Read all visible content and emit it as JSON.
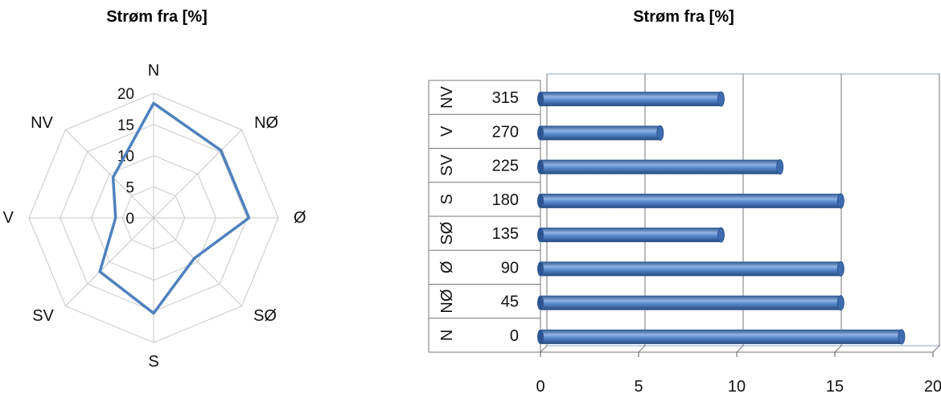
{
  "chart_data": [
    {
      "type": "radar",
      "title": "Strøm fra [%]",
      "categories": [
        "N",
        "NØ",
        "Ø",
        "SØ",
        "S",
        "SV",
        "V",
        "NV"
      ],
      "values": [
        18.4,
        15.3,
        15.3,
        9.2,
        15.3,
        12.2,
        6.1,
        9.2
      ],
      "rlim": [
        0,
        20
      ],
      "rticks": [
        "0",
        "5",
        "10",
        "15",
        "20"
      ],
      "color": "#4f81bd",
      "grid": true
    },
    {
      "type": "bar",
      "orientation": "horizontal",
      "title": "Strøm fra [%]",
      "categories": [
        {
          "dir": "N",
          "deg": "0"
        },
        {
          "dir": "NØ",
          "deg": "45"
        },
        {
          "dir": "Ø",
          "deg": "90"
        },
        {
          "dir": "SØ",
          "deg": "135"
        },
        {
          "dir": "S",
          "deg": "180"
        },
        {
          "dir": "SV",
          "deg": "225"
        },
        {
          "dir": "V",
          "deg": "270"
        },
        {
          "dir": "NV",
          "deg": "315"
        }
      ],
      "values": [
        18.4,
        15.3,
        15.3,
        9.2,
        15.3,
        12.2,
        6.1,
        9.2
      ],
      "xlim": [
        0,
        20
      ],
      "xticks": [
        "0",
        "5",
        "10",
        "15",
        "20"
      ],
      "color": "#4f81bd",
      "grid": true
    }
  ]
}
